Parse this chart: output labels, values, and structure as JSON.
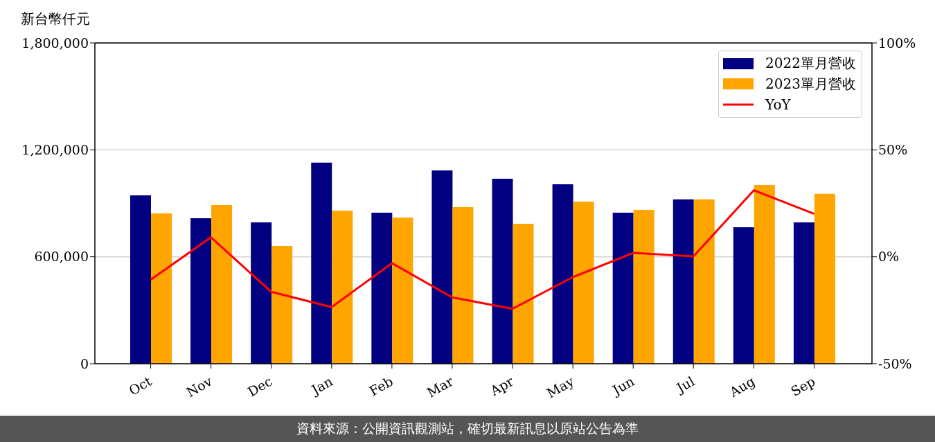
{
  "chart_data": {
    "type": "bar",
    "ylabel": "新台幣仟元",
    "categories": [
      "Oct",
      "Nov",
      "Dec",
      "Jan",
      "Feb",
      "Mar",
      "Apr",
      "May",
      "Jun",
      "Jul",
      "Aug",
      "Sep"
    ],
    "series": [
      {
        "name": "2022單月營收",
        "color": "#000080",
        "values": [
          945000,
          816000,
          793000,
          1128000,
          848000,
          1085000,
          1038000,
          1007000,
          848000,
          922000,
          766000,
          793000
        ]
      },
      {
        "name": "2023單月營收",
        "color": "#ffa500",
        "values": [
          844000,
          890000,
          661000,
          859000,
          820000,
          879000,
          785000,
          910000,
          863000,
          922000,
          1003000,
          953000
        ]
      },
      {
        "name": "YoY",
        "type": "line",
        "axis": "y2",
        "color": "#ff0000",
        "values": [
          -10.7,
          9.1,
          -16.4,
          -23.5,
          -3.0,
          -19.0,
          -24.3,
          -9.5,
          1.8,
          0.2,
          31.1,
          20.1
        ]
      }
    ],
    "ylim": [
      0,
      1800000
    ],
    "yticks": [
      0,
      {
        "value": 600000,
        "label": "600,000"
      },
      {
        "value": 1200000,
        "label": "1,200,000"
      },
      {
        "value": 1800000,
        "label": "1,800,000"
      }
    ],
    "y2lim": [
      -50,
      100
    ],
    "y2ticks": [
      {
        "value": -50,
        "label": "-50%"
      },
      {
        "value": 0,
        "label": "0%"
      },
      {
        "value": 50,
        "label": "50%"
      },
      {
        "value": 100,
        "label": "100%"
      }
    ],
    "grid": "y",
    "legend": "top right",
    "annotations": [
      "資料來源：公開資訊觀測站，確切最新訊息以原站公告為準"
    ]
  }
}
